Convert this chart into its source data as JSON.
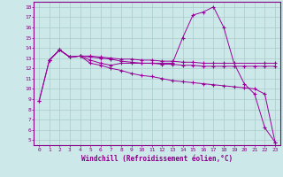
{
  "background_color": "#cce8e8",
  "grid_color": "#aacccc",
  "line_color": "#990099",
  "xlabel": "Windchill (Refroidissement éolien,°C)",
  "xlim": [
    -0.5,
    23.5
  ],
  "ylim": [
    4.5,
    18.5
  ],
  "xticks": [
    0,
    1,
    2,
    3,
    4,
    5,
    6,
    7,
    8,
    9,
    10,
    11,
    12,
    13,
    14,
    15,
    16,
    17,
    18,
    19,
    20,
    21,
    22,
    23
  ],
  "yticks": [
    5,
    6,
    7,
    8,
    9,
    10,
    11,
    12,
    13,
    14,
    15,
    16,
    17,
    18
  ],
  "line1_x": [
    0,
    1,
    2,
    3,
    4,
    5,
    6,
    7,
    8,
    9,
    10,
    11,
    12,
    13,
    14,
    15,
    16,
    17,
    18,
    19,
    20,
    21,
    22,
    23
  ],
  "line1_y": [
    8.8,
    12.8,
    13.8,
    13.1,
    13.2,
    13.1,
    13.0,
    12.9,
    12.7,
    12.6,
    12.5,
    12.5,
    12.4,
    12.4,
    12.3,
    12.3,
    12.2,
    12.2,
    12.2,
    12.2,
    12.2,
    12.2,
    12.2,
    12.2
  ],
  "line2_x": [
    0,
    1,
    2,
    3,
    4,
    5,
    6,
    7,
    8,
    9,
    10,
    11,
    12,
    13,
    14,
    15,
    16,
    17,
    18,
    19,
    20,
    21,
    22,
    23
  ],
  "line2_y": [
    8.8,
    12.8,
    13.8,
    13.1,
    13.2,
    12.5,
    12.3,
    12.0,
    11.8,
    11.5,
    11.3,
    11.2,
    11.0,
    10.8,
    10.7,
    10.6,
    10.5,
    10.4,
    10.3,
    10.2,
    10.1,
    10.0,
    9.5,
    4.8
  ],
  "line3_x": [
    1,
    2,
    3,
    4,
    5,
    6,
    7,
    8,
    9,
    10,
    11,
    12,
    13,
    14,
    15,
    16,
    17,
    18,
    22,
    23
  ],
  "line3_y": [
    12.8,
    13.8,
    13.1,
    13.2,
    13.2,
    13.1,
    13.0,
    12.9,
    12.9,
    12.8,
    12.8,
    12.7,
    12.7,
    12.6,
    12.6,
    12.5,
    12.5,
    12.5,
    12.5,
    12.5
  ],
  "line4_x": [
    1,
    2,
    3,
    4,
    5,
    6,
    7,
    8,
    9,
    10,
    11,
    12,
    13,
    14,
    15,
    16,
    17,
    18,
    19,
    20,
    21,
    22,
    23
  ],
  "line4_y": [
    12.8,
    13.8,
    13.1,
    13.2,
    12.8,
    12.5,
    12.3,
    12.5,
    12.5,
    12.5,
    12.5,
    12.5,
    12.5,
    15.0,
    17.2,
    17.5,
    18.0,
    16.0,
    12.5,
    10.5,
    9.5,
    6.2,
    4.8
  ]
}
